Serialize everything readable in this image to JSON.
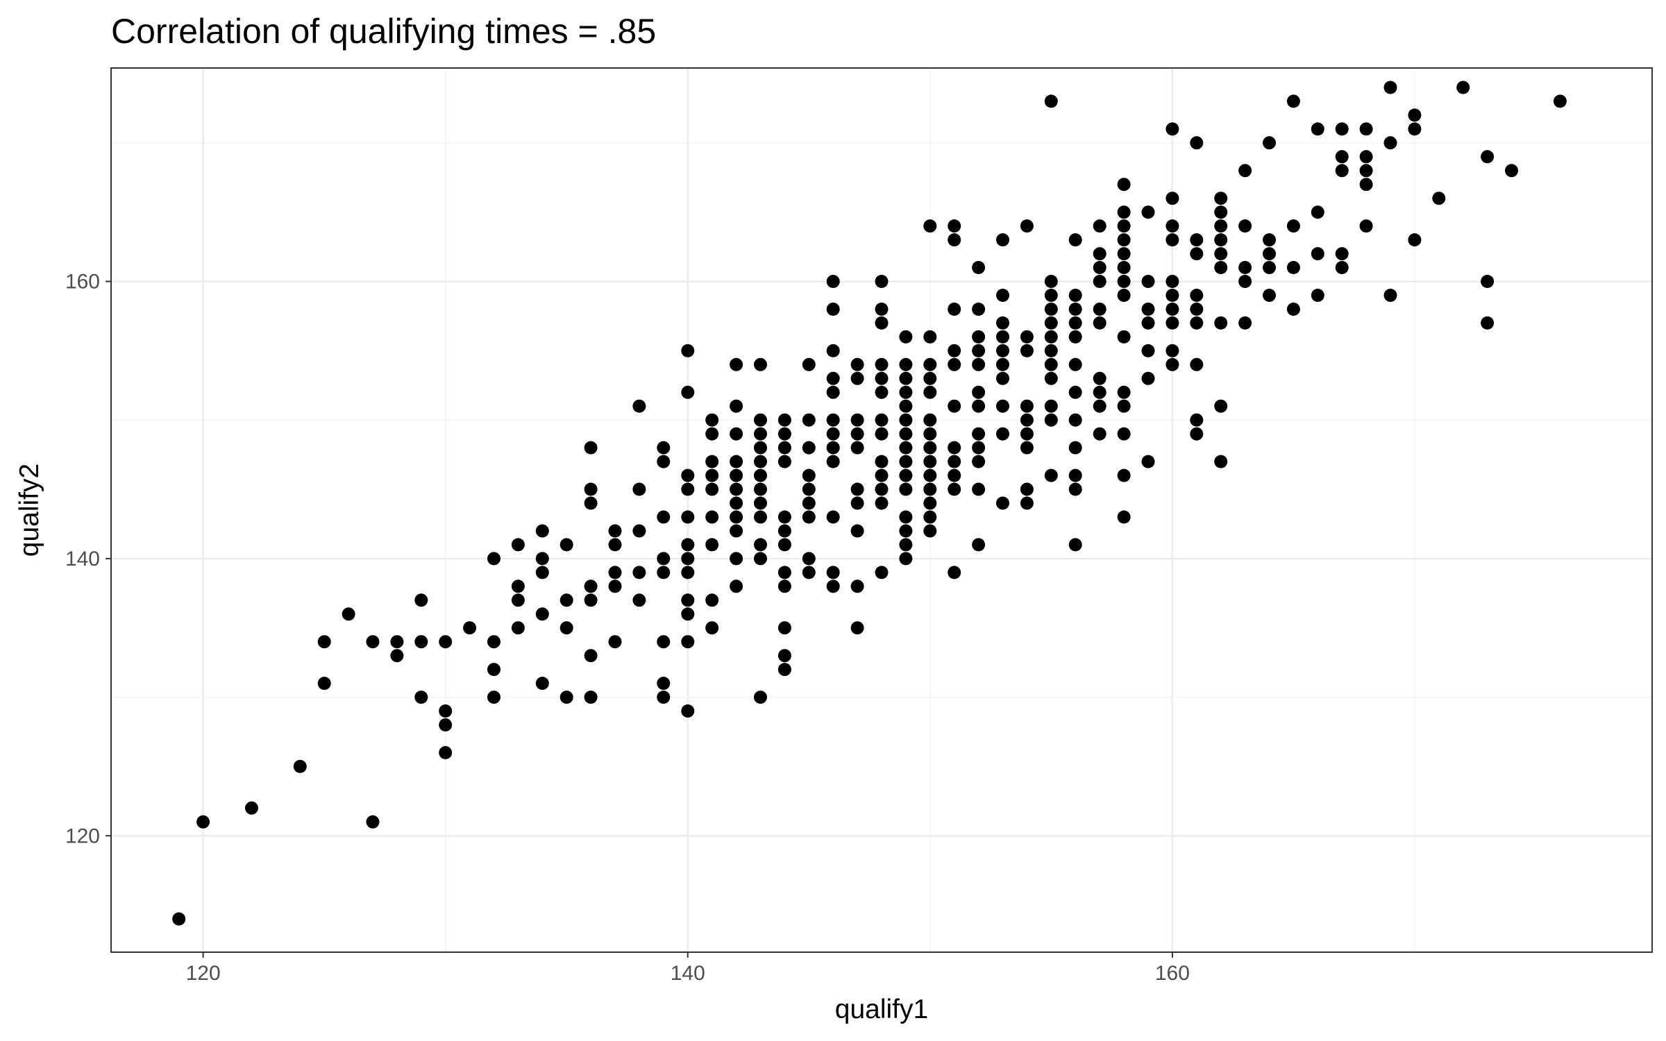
{
  "chart_data": {
    "type": "scatter",
    "title": "Correlation of qualifying times = .85",
    "xlabel": "qualify1",
    "ylabel": "qualify2",
    "xlim": [
      116.2,
      179.8
    ],
    "ylim": [
      111.6,
      175.4
    ],
    "xticks": [
      120,
      140,
      160
    ],
    "yticks": [
      120,
      140,
      160
    ],
    "grid": true,
    "legend": "none",
    "point_color": "#000000",
    "points": [
      [
        119,
        114
      ],
      [
        120,
        121
      ],
      [
        122,
        122
      ],
      [
        124,
        125
      ],
      [
        125,
        131
      ],
      [
        125,
        134
      ],
      [
        126,
        136
      ],
      [
        127,
        121
      ],
      [
        127,
        134
      ],
      [
        128,
        133
      ],
      [
        128,
        134
      ],
      [
        129,
        130
      ],
      [
        129,
        134
      ],
      [
        129,
        137
      ],
      [
        130,
        126
      ],
      [
        130,
        128
      ],
      [
        130,
        129
      ],
      [
        130,
        134
      ],
      [
        131,
        135
      ],
      [
        132,
        130
      ],
      [
        132,
        132
      ],
      [
        132,
        134
      ],
      [
        132,
        140
      ],
      [
        133,
        135
      ],
      [
        133,
        137
      ],
      [
        133,
        138
      ],
      [
        133,
        141
      ],
      [
        134,
        131
      ],
      [
        134,
        136
      ],
      [
        134,
        139
      ],
      [
        134,
        140
      ],
      [
        134,
        142
      ],
      [
        135,
        130
      ],
      [
        135,
        135
      ],
      [
        135,
        137
      ],
      [
        135,
        141
      ],
      [
        136,
        130
      ],
      [
        136,
        133
      ],
      [
        136,
        137
      ],
      [
        136,
        138
      ],
      [
        136,
        144
      ],
      [
        136,
        145
      ],
      [
        136,
        148
      ],
      [
        137,
        134
      ],
      [
        137,
        138
      ],
      [
        137,
        139
      ],
      [
        137,
        141
      ],
      [
        137,
        142
      ],
      [
        138,
        137
      ],
      [
        138,
        139
      ],
      [
        138,
        142
      ],
      [
        138,
        145
      ],
      [
        138,
        151
      ],
      [
        139,
        130
      ],
      [
        139,
        131
      ],
      [
        139,
        134
      ],
      [
        139,
        139
      ],
      [
        139,
        140
      ],
      [
        139,
        143
      ],
      [
        139,
        147
      ],
      [
        139,
        148
      ],
      [
        140,
        129
      ],
      [
        140,
        134
      ],
      [
        140,
        136
      ],
      [
        140,
        137
      ],
      [
        140,
        139
      ],
      [
        140,
        140
      ],
      [
        140,
        141
      ],
      [
        140,
        143
      ],
      [
        140,
        145
      ],
      [
        140,
        146
      ],
      [
        140,
        152
      ],
      [
        140,
        155
      ],
      [
        141,
        135
      ],
      [
        141,
        137
      ],
      [
        141,
        141
      ],
      [
        141,
        143
      ],
      [
        141,
        145
      ],
      [
        141,
        146
      ],
      [
        141,
        147
      ],
      [
        141,
        149
      ],
      [
        141,
        150
      ],
      [
        142,
        138
      ],
      [
        142,
        140
      ],
      [
        142,
        142
      ],
      [
        142,
        143
      ],
      [
        142,
        144
      ],
      [
        142,
        145
      ],
      [
        142,
        146
      ],
      [
        142,
        147
      ],
      [
        142,
        149
      ],
      [
        142,
        151
      ],
      [
        142,
        154
      ],
      [
        143,
        130
      ],
      [
        143,
        140
      ],
      [
        143,
        141
      ],
      [
        143,
        143
      ],
      [
        143,
        144
      ],
      [
        143,
        145
      ],
      [
        143,
        146
      ],
      [
        143,
        147
      ],
      [
        143,
        148
      ],
      [
        143,
        149
      ],
      [
        143,
        150
      ],
      [
        143,
        154
      ],
      [
        144,
        132
      ],
      [
        144,
        133
      ],
      [
        144,
        135
      ],
      [
        144,
        138
      ],
      [
        144,
        139
      ],
      [
        144,
        141
      ],
      [
        144,
        142
      ],
      [
        144,
        143
      ],
      [
        144,
        147
      ],
      [
        144,
        148
      ],
      [
        144,
        149
      ],
      [
        144,
        150
      ],
      [
        145,
        139
      ],
      [
        145,
        140
      ],
      [
        145,
        143
      ],
      [
        145,
        144
      ],
      [
        145,
        145
      ],
      [
        145,
        146
      ],
      [
        145,
        148
      ],
      [
        145,
        150
      ],
      [
        145,
        154
      ],
      [
        146,
        138
      ],
      [
        146,
        139
      ],
      [
        146,
        143
      ],
      [
        146,
        147
      ],
      [
        146,
        148
      ],
      [
        146,
        149
      ],
      [
        146,
        150
      ],
      [
        146,
        152
      ],
      [
        146,
        153
      ],
      [
        146,
        155
      ],
      [
        146,
        158
      ],
      [
        146,
        160
      ],
      [
        147,
        135
      ],
      [
        147,
        138
      ],
      [
        147,
        142
      ],
      [
        147,
        144
      ],
      [
        147,
        145
      ],
      [
        147,
        148
      ],
      [
        147,
        149
      ],
      [
        147,
        150
      ],
      [
        147,
        153
      ],
      [
        147,
        154
      ],
      [
        148,
        139
      ],
      [
        148,
        144
      ],
      [
        148,
        145
      ],
      [
        148,
        146
      ],
      [
        148,
        147
      ],
      [
        148,
        149
      ],
      [
        148,
        150
      ],
      [
        148,
        152
      ],
      [
        148,
        153
      ],
      [
        148,
        154
      ],
      [
        148,
        157
      ],
      [
        148,
        158
      ],
      [
        148,
        160
      ],
      [
        149,
        140
      ],
      [
        149,
        141
      ],
      [
        149,
        142
      ],
      [
        149,
        143
      ],
      [
        149,
        145
      ],
      [
        149,
        146
      ],
      [
        149,
        147
      ],
      [
        149,
        148
      ],
      [
        149,
        149
      ],
      [
        149,
        150
      ],
      [
        149,
        151
      ],
      [
        149,
        152
      ],
      [
        149,
        153
      ],
      [
        149,
        154
      ],
      [
        149,
        156
      ],
      [
        150,
        142
      ],
      [
        150,
        143
      ],
      [
        150,
        144
      ],
      [
        150,
        145
      ],
      [
        150,
        146
      ],
      [
        150,
        147
      ],
      [
        150,
        148
      ],
      [
        150,
        149
      ],
      [
        150,
        150
      ],
      [
        150,
        152
      ],
      [
        150,
        153
      ],
      [
        150,
        154
      ],
      [
        150,
        156
      ],
      [
        150,
        164
      ],
      [
        151,
        139
      ],
      [
        151,
        145
      ],
      [
        151,
        146
      ],
      [
        151,
        147
      ],
      [
        151,
        148
      ],
      [
        151,
        151
      ],
      [
        151,
        154
      ],
      [
        151,
        155
      ],
      [
        151,
        158
      ],
      [
        151,
        163
      ],
      [
        151,
        164
      ],
      [
        152,
        141
      ],
      [
        152,
        145
      ],
      [
        152,
        147
      ],
      [
        152,
        148
      ],
      [
        152,
        149
      ],
      [
        152,
        151
      ],
      [
        152,
        152
      ],
      [
        152,
        154
      ],
      [
        152,
        155
      ],
      [
        152,
        156
      ],
      [
        152,
        158
      ],
      [
        152,
        161
      ],
      [
        153,
        144
      ],
      [
        153,
        149
      ],
      [
        153,
        151
      ],
      [
        153,
        153
      ],
      [
        153,
        154
      ],
      [
        153,
        155
      ],
      [
        153,
        156
      ],
      [
        153,
        157
      ],
      [
        153,
        159
      ],
      [
        153,
        163
      ],
      [
        154,
        144
      ],
      [
        154,
        145
      ],
      [
        154,
        148
      ],
      [
        154,
        149
      ],
      [
        154,
        150
      ],
      [
        154,
        151
      ],
      [
        154,
        155
      ],
      [
        154,
        156
      ],
      [
        154,
        164
      ],
      [
        155,
        146
      ],
      [
        155,
        150
      ],
      [
        155,
        151
      ],
      [
        155,
        153
      ],
      [
        155,
        154
      ],
      [
        155,
        155
      ],
      [
        155,
        156
      ],
      [
        155,
        157
      ],
      [
        155,
        158
      ],
      [
        155,
        159
      ],
      [
        155,
        160
      ],
      [
        155,
        173
      ],
      [
        156,
        141
      ],
      [
        156,
        145
      ],
      [
        156,
        146
      ],
      [
        156,
        148
      ],
      [
        156,
        150
      ],
      [
        156,
        152
      ],
      [
        156,
        154
      ],
      [
        156,
        156
      ],
      [
        156,
        157
      ],
      [
        156,
        158
      ],
      [
        156,
        159
      ],
      [
        156,
        163
      ],
      [
        157,
        149
      ],
      [
        157,
        151
      ],
      [
        157,
        152
      ],
      [
        157,
        153
      ],
      [
        157,
        157
      ],
      [
        157,
        158
      ],
      [
        157,
        160
      ],
      [
        157,
        161
      ],
      [
        157,
        162
      ],
      [
        157,
        164
      ],
      [
        158,
        143
      ],
      [
        158,
        146
      ],
      [
        158,
        149
      ],
      [
        158,
        151
      ],
      [
        158,
        152
      ],
      [
        158,
        156
      ],
      [
        158,
        159
      ],
      [
        158,
        160
      ],
      [
        158,
        161
      ],
      [
        158,
        162
      ],
      [
        158,
        163
      ],
      [
        158,
        164
      ],
      [
        158,
        165
      ],
      [
        158,
        167
      ],
      [
        159,
        147
      ],
      [
        159,
        153
      ],
      [
        159,
        155
      ],
      [
        159,
        157
      ],
      [
        159,
        158
      ],
      [
        159,
        160
      ],
      [
        159,
        165
      ],
      [
        160,
        154
      ],
      [
        160,
        155
      ],
      [
        160,
        157
      ],
      [
        160,
        158
      ],
      [
        160,
        159
      ],
      [
        160,
        160
      ],
      [
        160,
        163
      ],
      [
        160,
        164
      ],
      [
        160,
        166
      ],
      [
        160,
        171
      ],
      [
        161,
        149
      ],
      [
        161,
        150
      ],
      [
        161,
        154
      ],
      [
        161,
        157
      ],
      [
        161,
        158
      ],
      [
        161,
        159
      ],
      [
        161,
        162
      ],
      [
        161,
        163
      ],
      [
        161,
        170
      ],
      [
        162,
        147
      ],
      [
        162,
        151
      ],
      [
        162,
        157
      ],
      [
        162,
        161
      ],
      [
        162,
        162
      ],
      [
        162,
        163
      ],
      [
        162,
        164
      ],
      [
        162,
        165
      ],
      [
        162,
        166
      ],
      [
        163,
        157
      ],
      [
        163,
        160
      ],
      [
        163,
        161
      ],
      [
        163,
        164
      ],
      [
        163,
        168
      ],
      [
        164,
        159
      ],
      [
        164,
        161
      ],
      [
        164,
        162
      ],
      [
        164,
        163
      ],
      [
        164,
        170
      ],
      [
        165,
        158
      ],
      [
        165,
        161
      ],
      [
        165,
        164
      ],
      [
        165,
        173
      ],
      [
        166,
        159
      ],
      [
        166,
        162
      ],
      [
        166,
        165
      ],
      [
        166,
        171
      ],
      [
        167,
        161
      ],
      [
        167,
        162
      ],
      [
        167,
        168
      ],
      [
        167,
        169
      ],
      [
        167,
        171
      ],
      [
        168,
        164
      ],
      [
        168,
        167
      ],
      [
        168,
        168
      ],
      [
        168,
        169
      ],
      [
        168,
        171
      ],
      [
        169,
        159
      ],
      [
        169,
        170
      ],
      [
        169,
        174
      ],
      [
        170,
        163
      ],
      [
        170,
        171
      ],
      [
        170,
        172
      ],
      [
        171,
        166
      ],
      [
        172,
        174
      ],
      [
        173,
        157
      ],
      [
        173,
        160
      ],
      [
        173,
        169
      ],
      [
        174,
        168
      ],
      [
        176,
        173
      ]
    ]
  }
}
